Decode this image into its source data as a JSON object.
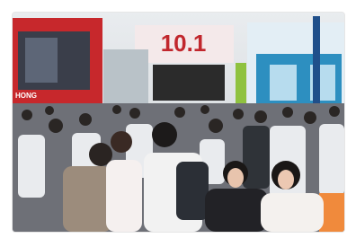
{
  "photo": {
    "hall_sign": "10.1",
    "booth_sign": "HONG"
  }
}
